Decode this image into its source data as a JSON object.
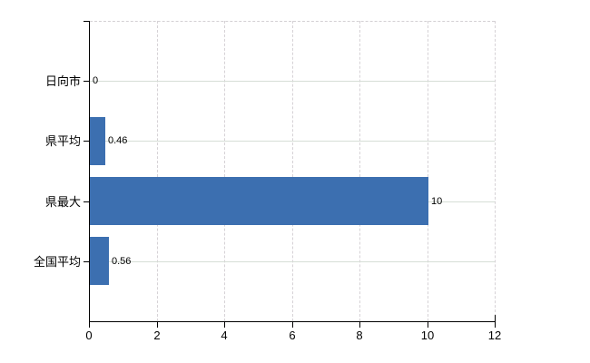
{
  "chart_data": {
    "type": "bar",
    "orientation": "horizontal",
    "title": "",
    "xlabel": "",
    "ylabel": "",
    "categories": [
      "日向市",
      "県平均",
      "県最大",
      "全国平均"
    ],
    "values": [
      0,
      0.46,
      10,
      0.56
    ],
    "data_labels": [
      "0",
      "0.46",
      "10",
      "0.56"
    ],
    "xlim": [
      0,
      12
    ],
    "x_ticks": [
      0,
      2,
      4,
      6,
      8,
      10,
      12
    ],
    "x_tick_labels": [
      "0",
      "2",
      "4",
      "6",
      "8",
      "10",
      "12"
    ],
    "grid": true,
    "legend": "none",
    "colors": {
      "bar": "#3c6fb0",
      "grid_horizontal": "#d6ded6",
      "grid_vertical": "#d6d2d6",
      "axis": "#000000",
      "text": "#000000",
      "background": "#ffffff"
    }
  }
}
